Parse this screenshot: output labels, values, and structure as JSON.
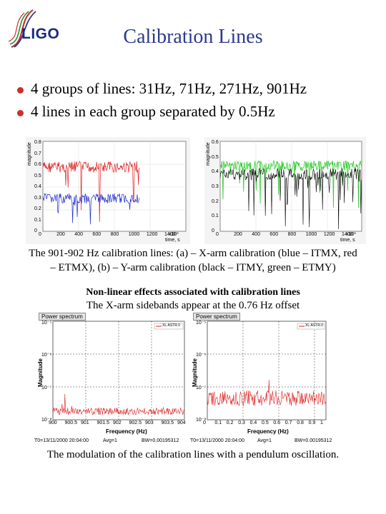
{
  "logo": {
    "text": "LIGO"
  },
  "title": "Calibration Lines",
  "bullets": [
    "4 groups of lines: 31Hz, 71Hz, 271Hz, 901Hz",
    "4 lines in each group separated by 0.5Hz"
  ],
  "top_plots": {
    "caption_line1": "The 901-902 Hz calibration lines: (a) – X-arm calibration (blue – ITMX, red",
    "caption_line2": "– ETMX), (b) – Y-arm calibration (black – ITMY, green – ETMY)",
    "left": {
      "ylabel": "magnitude",
      "x_ticks": [
        "0",
        "200",
        "400",
        "600",
        "800",
        "1000",
        "1200",
        "1400"
      ],
      "y_ticks": [
        "0",
        "0.1",
        "0.2",
        "0.3",
        "0.4",
        "0.5",
        "0.6",
        "0.7",
        "0.8"
      ],
      "x_exp": "x10³",
      "x_unit": "time, s"
    },
    "right": {
      "ylabel": "magnitude",
      "x_ticks": [
        "0",
        "200",
        "400",
        "600",
        "800",
        "1000",
        "1200",
        "1400"
      ],
      "y_ticks": [
        "0",
        "0.1",
        "0.2",
        "0.3",
        "0.4",
        "0.5",
        "0.6"
      ],
      "x_exp": "x10³",
      "x_unit": "time, s"
    }
  },
  "nonlinear": {
    "heading": "Non-linear effects associated with calibration lines",
    "subheading": "The X-arm sidebands appear at the 0.76 Hz offset"
  },
  "bottom_plots": {
    "left": {
      "tab": "Power spectrum",
      "legend": "XL.ASTR.0",
      "ylabel": "Magnitude",
      "xlabel": "Frequency (Hz)",
      "x_ticks": [
        "900",
        "900.5",
        "901",
        "901.5",
        "902",
        "902.5",
        "903",
        "903.5",
        "904"
      ],
      "y_ticks": [
        "10⁻⁸",
        "10⁻⁷",
        "10⁻⁶",
        "10⁻⁵"
      ],
      "footer": [
        "T0=13/11/2000 20:04:00",
        "Avg=1",
        "BW=0.00195312"
      ]
    },
    "right": {
      "tab": "Power spectrum",
      "legend": "XL.ASTR.0",
      "ylabel": "Magnitude",
      "xlabel": "Frequency (Hz)",
      "x_ticks": [
        "0",
        "0.1",
        "0.2",
        "0.3",
        "0.4",
        "0.5",
        "0.6",
        "0.7",
        "0.8",
        "0.9",
        "1"
      ],
      "y_ticks": [
        "10⁻⁸",
        "10⁻⁷",
        "10⁻⁶",
        "10⁻⁵"
      ],
      "footer": [
        "T0=13/11/2000 20:04:00",
        "Avg=1",
        "BW=0.00195312"
      ]
    },
    "caption": "The modulation of the calibration lines with a pendulum oscillation."
  },
  "colors": {
    "title": "#2b3a8c",
    "bullet": "#c8322a",
    "red": "#e02020",
    "blue": "#1f2fd0",
    "green": "#2ecc2e",
    "black": "#000000"
  }
}
